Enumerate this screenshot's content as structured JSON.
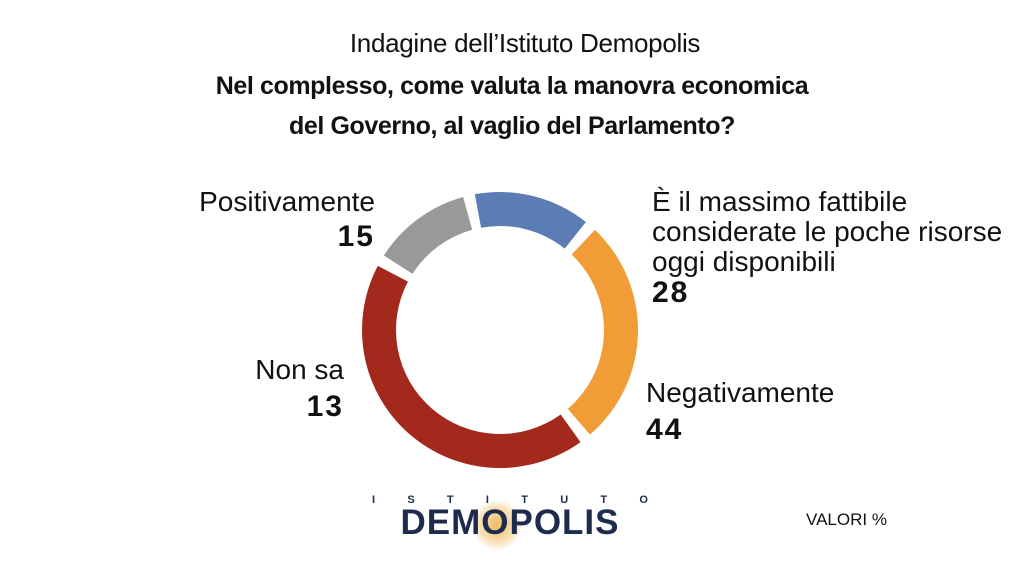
{
  "header": {
    "subtitle": "Indagine dell’Istituto Demopolis",
    "title_line1": "Nel complesso, come valuta la manovra economica",
    "title_line2": "del Governo, al vaglio del Parlamento?"
  },
  "chart_data": {
    "type": "pie",
    "variant": "donut",
    "unit": "VALORI %",
    "slices": [
      {
        "label": "Positivamente",
        "value": 15,
        "color": "#5b7db4"
      },
      {
        "label": "È il massimo fattibile considerate le poche risorse oggi disponibili",
        "value": 28,
        "color": "#f09d38"
      },
      {
        "label": "Negativamente",
        "value": 44,
        "color": "#a3291c"
      },
      {
        "label": "Non sa",
        "value": 13,
        "color": "#999999"
      }
    ]
  },
  "labels": {
    "positivamente": {
      "label": "Positivamente",
      "value": "15"
    },
    "massimo": {
      "line1": "È il massimo fattibile",
      "line2": "considerate le poche risorse",
      "line3": "oggi disponibili",
      "value": "28"
    },
    "negativamente": {
      "label": "Negativamente",
      "value": "44"
    },
    "nonsa": {
      "label": "Non sa",
      "value": "13"
    }
  },
  "logo": {
    "top_letters": [
      "I",
      "S",
      "T",
      "I",
      "T",
      "U",
      "T",
      "O"
    ],
    "name": "DEMOPOLIS"
  },
  "footer": {
    "unit_label": "VALORI %"
  }
}
